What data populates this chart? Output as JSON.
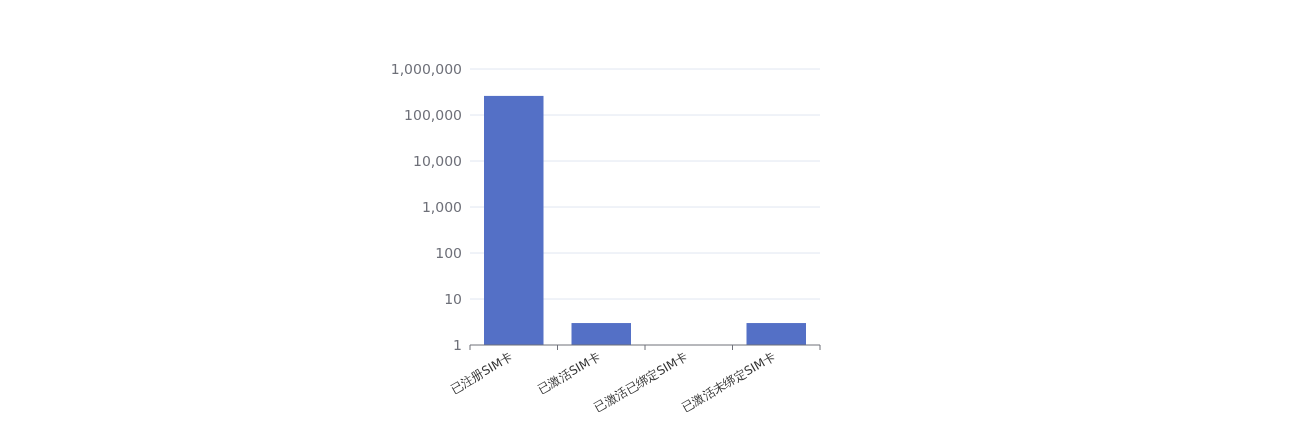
{
  "chart_data": {
    "type": "bar",
    "categories": [
      "已注册SIM卡",
      "已激活SIM卡",
      "已激活已绑定SIM卡",
      "已激活未绑定SIM卡"
    ],
    "values": [
      260000,
      3,
      null,
      3
    ],
    "color": "#5470c6",
    "log": true,
    "grid": "y",
    "ylim": [
      1,
      1000000
    ],
    "yticks": [
      {
        "value": 1,
        "label": "1"
      },
      {
        "value": 10,
        "label": "10"
      },
      {
        "value": 100,
        "label": "100"
      },
      {
        "value": 1000,
        "label": "1,000"
      },
      {
        "value": 10000,
        "label": "10,000"
      },
      {
        "value": 100000,
        "label": "100,000"
      },
      {
        "value": 1000000,
        "label": "1,000,000"
      }
    ]
  }
}
